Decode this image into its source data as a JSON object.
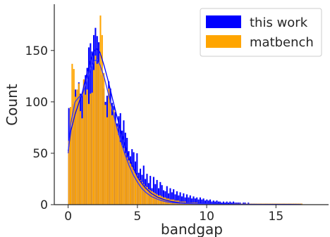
{
  "chart_data": {
    "type": "bar",
    "subtype": "histogram-with-kde",
    "title": "",
    "xlabel": "bandgap",
    "ylabel": "Count",
    "xlim": [
      -1,
      18.8
    ],
    "ylim": [
      0,
      195
    ],
    "xticks": [
      0,
      5,
      10,
      15
    ],
    "yticks": [
      0,
      50,
      100,
      150
    ],
    "grid": false,
    "legend_position": "top-right",
    "bin_width": 0.12,
    "series": [
      {
        "name": "this work",
        "color": "#0000ff",
        "x_start": 0,
        "values": [
          94,
          75,
          72,
          98,
          112,
          108,
          119,
          108,
          107,
          121,
          126,
          133,
          153,
          157,
          149,
          165,
          172,
          164,
          158,
          136,
          126,
          113,
          100,
          106,
          120,
          113,
          99,
          96,
          90,
          79,
          86,
          89,
          72,
          82,
          70,
          65,
          52,
          47,
          54,
          51,
          42,
          50,
          31,
          35,
          29,
          38,
          25,
          30,
          21,
          28,
          16,
          27,
          20,
          24,
          16,
          22,
          19,
          14,
          13,
          18,
          11,
          16,
          12,
          15,
          10,
          13,
          9,
          12,
          8,
          11,
          7,
          10,
          7,
          9,
          6,
          8,
          6,
          7,
          5,
          7,
          5,
          6,
          4,
          5,
          4,
          5,
          3,
          4,
          3,
          4,
          3,
          3,
          2,
          3,
          2,
          3,
          2,
          3,
          2,
          3,
          2,
          2,
          2,
          2,
          1,
          2,
          2,
          1,
          2,
          1,
          1,
          1,
          1,
          1,
          1,
          1,
          1,
          1,
          1,
          1,
          1,
          1,
          1,
          1,
          1,
          1,
          1,
          1,
          1,
          1,
          1,
          1,
          1,
          1,
          1,
          1,
          1,
          1,
          1,
          1,
          1
        ],
        "kde": [
          [
            0,
            52
          ],
          [
            0.2,
            72
          ],
          [
            0.5,
            88
          ],
          [
            0.8,
            100
          ],
          [
            1.0,
            108
          ],
          [
            1.3,
            125
          ],
          [
            1.6,
            140
          ],
          [
            1.9,
            150
          ],
          [
            2.1,
            152
          ],
          [
            2.3,
            148
          ],
          [
            2.6,
            135
          ],
          [
            2.9,
            120
          ],
          [
            3.2,
            103
          ],
          [
            3.5,
            87
          ],
          [
            3.8,
            72
          ],
          [
            4.1,
            58
          ],
          [
            4.4,
            45
          ],
          [
            4.7,
            36
          ],
          [
            5.0,
            27
          ],
          [
            5.3,
            21
          ],
          [
            5.6,
            16
          ],
          [
            6.0,
            11
          ],
          [
            6.5,
            7
          ],
          [
            7.0,
            4.5
          ],
          [
            7.5,
            3
          ],
          [
            8.0,
            2
          ],
          [
            9.0,
            1.2
          ],
          [
            10.0,
            1
          ],
          [
            11.0,
            0.8
          ],
          [
            12.0,
            0.4
          ],
          [
            13.0,
            0.3
          ],
          [
            14.0,
            0.2
          ],
          [
            15.0,
            0.2
          ],
          [
            16.0,
            0.2
          ],
          [
            16.8,
            0.1
          ]
        ]
      },
      {
        "name": "matbench",
        "color": "#ffa500",
        "x_start": 0,
        "values": [
          62,
          95,
          137,
          132,
          105,
          112,
          118,
          91,
          84,
          122,
          107,
          112,
          98,
          108,
          109,
          131,
          145,
          137,
          138,
          184,
          165,
          128,
          97,
          85,
          113,
          99,
          87,
          92,
          81,
          76,
          68,
          61,
          58,
          55,
          50,
          46,
          43,
          40,
          37,
          34,
          31,
          29,
          26,
          24,
          22,
          20,
          18,
          17,
          15,
          14,
          13,
          12,
          11,
          10,
          9,
          9,
          8,
          7,
          7,
          6,
          6,
          5,
          5,
          5,
          4,
          4,
          4,
          3,
          3,
          3,
          3,
          2,
          2,
          2,
          2,
          2,
          2,
          2,
          1,
          1,
          1,
          1,
          1,
          1,
          1,
          1,
          1,
          1,
          1,
          1,
          1,
          1,
          1,
          1,
          1,
          1,
          1,
          1,
          1,
          1,
          1,
          1,
          1,
          1,
          1,
          1,
          1,
          1,
          1,
          1,
          1,
          1,
          1,
          1,
          1,
          1,
          1,
          1,
          1,
          1,
          1,
          1,
          1,
          1,
          1,
          1,
          1,
          1,
          1,
          1,
          1,
          1,
          1,
          1,
          1,
          1,
          1,
          1,
          1,
          1,
          1
        ],
        "kde": [
          [
            0,
            50
          ],
          [
            0.2,
            80
          ],
          [
            0.5,
            100
          ],
          [
            0.8,
            105
          ],
          [
            1.0,
            106
          ],
          [
            1.3,
            118
          ],
          [
            1.6,
            132
          ],
          [
            1.9,
            140
          ],
          [
            2.1,
            141
          ],
          [
            2.3,
            136
          ],
          [
            2.6,
            124
          ],
          [
            2.9,
            108
          ],
          [
            3.2,
            92
          ],
          [
            3.5,
            76
          ],
          [
            3.8,
            62
          ],
          [
            4.1,
            49
          ],
          [
            4.4,
            38
          ],
          [
            4.7,
            29
          ],
          [
            5.0,
            22
          ],
          [
            5.3,
            16
          ],
          [
            5.6,
            12
          ],
          [
            6.0,
            8
          ],
          [
            6.5,
            5
          ],
          [
            7.0,
            3
          ],
          [
            7.5,
            2
          ],
          [
            8.0,
            1.5
          ],
          [
            9.0,
            1
          ],
          [
            10.0,
            0.8
          ],
          [
            11.0,
            0.5
          ],
          [
            12.0,
            0.3
          ],
          [
            13.0,
            0.2
          ],
          [
            14.0,
            0.2
          ],
          [
            15.0,
            0.1
          ],
          [
            16.0,
            0.1
          ],
          [
            16.8,
            0.1
          ]
        ]
      }
    ]
  }
}
